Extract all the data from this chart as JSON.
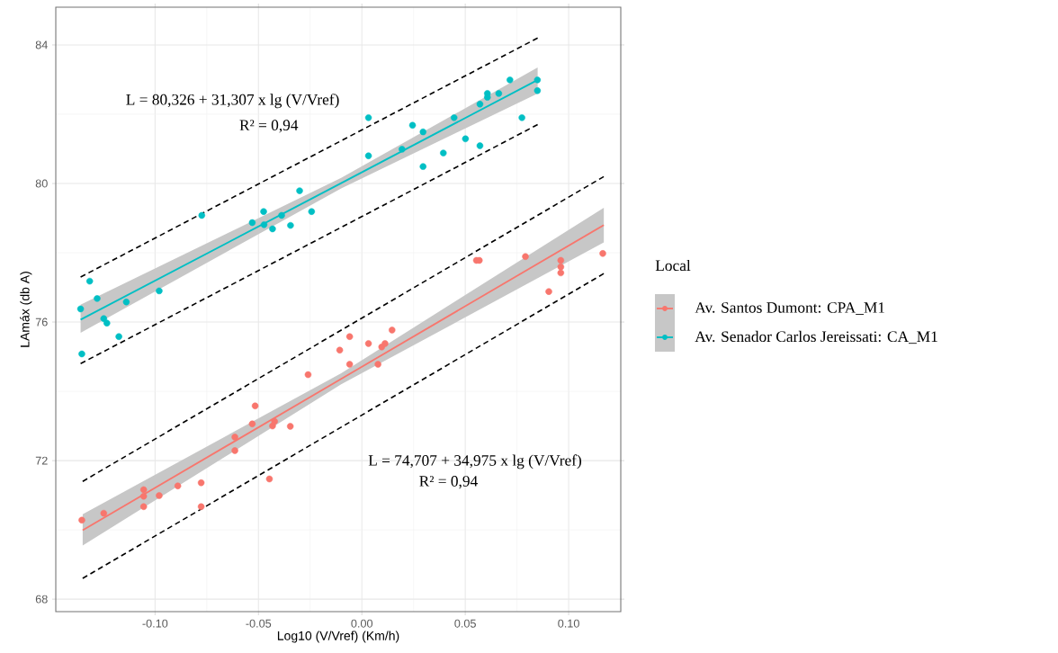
{
  "chart_data": {
    "type": "scatter",
    "xlabel": "Log10 (V/Vref) (Km/h)",
    "ylabel": "LAmáx (db A)",
    "legend_title": "Local",
    "legend": "right",
    "grid": true,
    "xlim": [
      -0.148,
      0.1252
    ],
    "ylim": [
      67.64,
      85.09
    ],
    "xticks": [
      {
        "value": -0.1,
        "label": "-0.10"
      },
      {
        "value": -0.05,
        "label": "-0.05"
      },
      {
        "value": 0,
        "label": "0.00"
      },
      {
        "value": 0.05,
        "label": "0.05"
      },
      {
        "value": 0.1,
        "label": "0.10"
      }
    ],
    "yticks": [
      68,
      72,
      76,
      80,
      84
    ],
    "annotations": [
      "L = 80,326 + 31,307 x lg (V/Vref)",
      "R² = 0,94",
      "L = 74,707 + 34,975 x lg (V/Vref)",
      "R² = 0,94"
    ],
    "series": [
      {
        "name": "Av. Santos Dumont: CPA_M1",
        "color": "#f8766d",
        "marker": "circle",
        "x": [
          -0.1354,
          -0.1248,
          -0.1055,
          -0.1055,
          -0.1055,
          -0.098,
          -0.089,
          -0.0777,
          -0.0777,
          -0.0614,
          -0.0614,
          -0.053,
          -0.0516,
          -0.0447,
          -0.0432,
          -0.0422,
          -0.0346,
          -0.026,
          -0.0107,
          -0.0059,
          -0.0059,
          0.0032,
          0.0078,
          0.0096,
          0.0112,
          0.0146,
          0.0554,
          0.0568,
          0.0791,
          0.0962,
          0.0962,
          0.0962,
          0.0904,
          0.1165
        ],
        "values": [
          70.28,
          70.48,
          71.16,
          70.97,
          70.67,
          70.99,
          71.27,
          71.36,
          70.67,
          72.68,
          72.29,
          73.06,
          73.58,
          71.47,
          73.0,
          73.13,
          72.99,
          74.48,
          75.19,
          75.58,
          74.78,
          75.38,
          74.78,
          75.28,
          75.38,
          75.77,
          77.78,
          77.78,
          77.89,
          77.78,
          77.59,
          77.42,
          76.88,
          77.98
        ]
      },
      {
        "name": "Av. Senador Carlos Jereissati: CA_M1",
        "color": "#00bfc4",
        "marker": "circle",
        "x": [
          -0.136,
          -0.1316,
          -0.1354,
          -0.128,
          -0.1248,
          -0.1233,
          -0.1175,
          -0.1139,
          -0.098,
          -0.0774,
          -0.053,
          -0.0475,
          -0.0473,
          -0.0432,
          -0.0388,
          -0.0345,
          -0.0301,
          -0.0243,
          0.0032,
          0.0032,
          0.0194,
          0.0245,
          0.0296,
          0.0296,
          0.0394,
          0.0446,
          0.0501,
          0.0571,
          0.0571,
          0.0607,
          0.0607,
          0.0662,
          0.0716,
          0.0774,
          0.0849,
          0.0849
        ],
        "values": [
          76.38,
          77.18,
          75.08,
          76.68,
          76.1,
          75.97,
          75.58,
          76.58,
          76.9,
          79.08,
          78.87,
          79.19,
          78.81,
          78.69,
          79.08,
          78.79,
          79.79,
          79.19,
          81.9,
          80.8,
          80.99,
          81.68,
          81.49,
          80.49,
          80.88,
          81.9,
          81.29,
          82.29,
          81.09,
          82.6,
          82.49,
          82.6,
          82.99,
          81.9,
          82.99,
          82.68
        ]
      },
      {
        "type": "line",
        "color": "#f8766d",
        "x": [
          -0.135,
          -0.01,
          0.117
        ],
        "values": [
          69.99,
          74.36,
          78.8
        ],
        "lower": [
          69.55,
          74.2,
          78.3
        ],
        "upper": [
          70.45,
          74.52,
          79.3
        ]
      },
      {
        "type": "line",
        "color": "#00bfc4",
        "x": [
          -0.136,
          -0.01,
          0.085
        ],
        "values": [
          76.07,
          80.01,
          82.99
        ],
        "lower": [
          75.69,
          79.86,
          82.6
        ],
        "upper": [
          76.5,
          80.16,
          83.35
        ]
      },
      {
        "type": "line",
        "color": "#000000",
        "line_style": "dashed",
        "x": [
          -0.136,
          0.085
        ],
        "values": [
          77.3,
          84.2
        ]
      },
      {
        "type": "line",
        "color": "#000000",
        "line_style": "dashed",
        "x": [
          -0.136,
          0.085
        ],
        "values": [
          74.8,
          81.7
        ]
      },
      {
        "type": "line",
        "color": "#000000",
        "line_style": "dashed",
        "x": [
          -0.135,
          0.117
        ],
        "values": [
          71.4,
          80.2
        ]
      },
      {
        "type": "line",
        "color": "#000000",
        "line_style": "dashed",
        "x": [
          -0.135,
          0.117
        ],
        "values": [
          68.6,
          77.4
        ]
      }
    ]
  }
}
